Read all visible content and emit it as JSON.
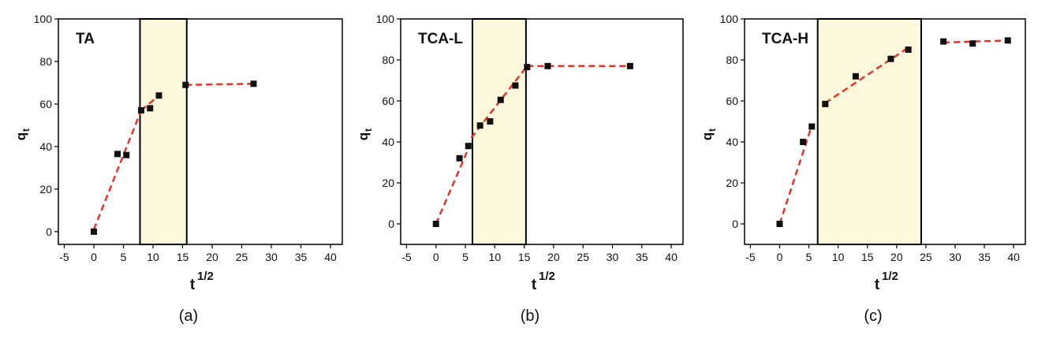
{
  "chart_data": [
    {
      "type": "scatter",
      "title": "TA",
      "caption": "(a)",
      "xlabel": "t",
      "xlabel_superscript": "1/2",
      "ylabel": "q",
      "ylabel_subscript": "t",
      "x": [
        0,
        4,
        5.5,
        8,
        9.5,
        11,
        15.5,
        27
      ],
      "values": [
        0,
        36.5,
        36,
        57,
        58,
        64,
        69,
        69.5
      ],
      "color": "#111111",
      "band": [
        7.8,
        15.7
      ],
      "band_color": "#fbf8dc",
      "fits": [
        {
          "x": [
            0,
            8
          ],
          "y": [
            1,
            57
          ]
        },
        {
          "x": [
            8,
            11
          ],
          "y": [
            57,
            64
          ]
        },
        {
          "x": [
            15.5,
            27
          ],
          "y": [
            69,
            69.5
          ]
        }
      ],
      "fit_color": "#e8312a",
      "xlim": [
        -6,
        42
      ],
      "xticks": [
        -5,
        0,
        5,
        10,
        15,
        20,
        25,
        30,
        35,
        40
      ],
      "ylim": [
        -6,
        100
      ],
      "yticks": [
        0,
        20,
        40,
        60,
        80,
        100
      ]
    },
    {
      "type": "scatter",
      "title": "TCA-L",
      "caption": "(b)",
      "xlabel": "t",
      "xlabel_superscript": "1/2",
      "ylabel": "q",
      "ylabel_subscript": "t",
      "x": [
        0,
        4,
        5.5,
        7.5,
        9.2,
        11,
        13.5,
        15.5,
        19,
        33
      ],
      "values": [
        0,
        32,
        38,
        48,
        50,
        60.5,
        67.5,
        76.5,
        77,
        77
      ],
      "color": "#111111",
      "band": [
        6.2,
        15.3
      ],
      "band_color": "#fbf8dc",
      "fits": [
        {
          "x": [
            0,
            6
          ],
          "y": [
            0,
            40
          ]
        },
        {
          "x": [
            6,
            15.5
          ],
          "y": [
            42,
            77
          ]
        },
        {
          "x": [
            15.5,
            33
          ],
          "y": [
            77,
            77
          ]
        }
      ],
      "fit_color": "#e8312a",
      "xlim": [
        -6,
        42
      ],
      "xticks": [
        -5,
        0,
        5,
        10,
        15,
        20,
        25,
        30,
        35,
        40
      ],
      "ylim": [
        -10,
        100
      ],
      "yticks": [
        0,
        20,
        40,
        60,
        80,
        100
      ]
    },
    {
      "type": "scatter",
      "title": "TCA-H",
      "caption": "(c)",
      "xlabel": "t",
      "xlabel_superscript": "1/2",
      "ylabel": "q",
      "ylabel_subscript": "t",
      "x": [
        0,
        4,
        5.5,
        7.8,
        13,
        19,
        22,
        28,
        33,
        39
      ],
      "values": [
        0,
        40,
        47.5,
        58.5,
        72,
        80.5,
        85,
        89,
        88,
        89.5
      ],
      "color": "#111111",
      "band": [
        6.5,
        24.2
      ],
      "band_color": "#fbf8dc",
      "fits": [
        {
          "x": [
            0,
            5.5
          ],
          "y": [
            0,
            48
          ]
        },
        {
          "x": [
            7.8,
            22
          ],
          "y": [
            59,
            86
          ]
        },
        {
          "x": [
            28,
            39
          ],
          "y": [
            88.5,
            89.5
          ]
        }
      ],
      "fit_color": "#e8312a",
      "xlim": [
        -6,
        42
      ],
      "xticks": [
        -5,
        0,
        5,
        10,
        15,
        20,
        25,
        30,
        35,
        40
      ],
      "ylim": [
        -10,
        100
      ],
      "yticks": [
        0,
        20,
        40,
        60,
        80,
        100
      ]
    }
  ]
}
